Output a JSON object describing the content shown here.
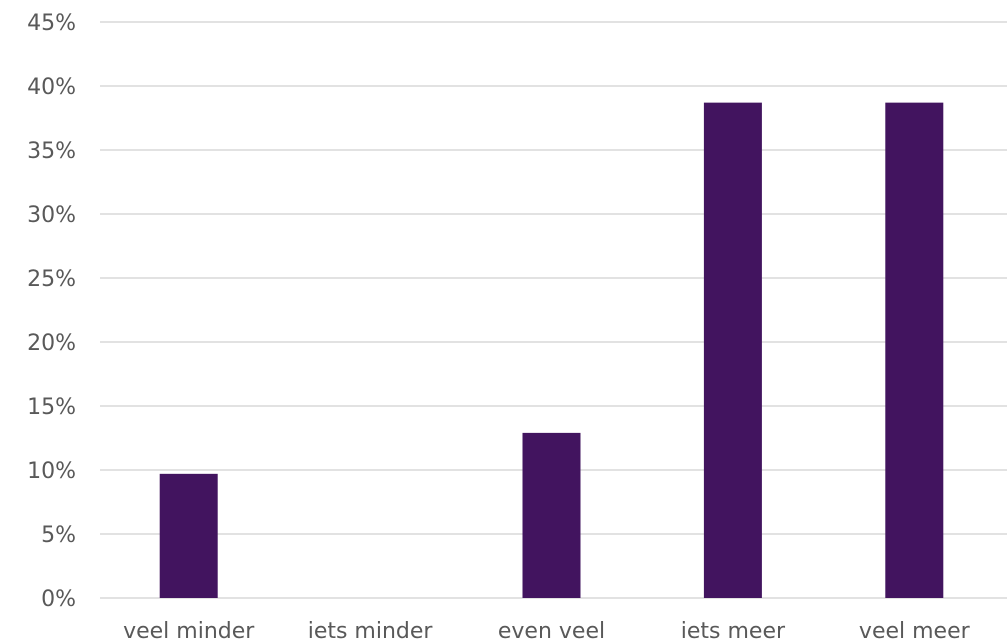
{
  "chart_data": {
    "type": "bar",
    "categories": [
      "veel minder",
      "iets minder",
      "even veel",
      "iets meer",
      "veel meer"
    ],
    "values": [
      9.7,
      0,
      12.9,
      38.7,
      38.7
    ],
    "ylim": [
      0,
      45
    ],
    "y_ticks": [
      "0%",
      "5%",
      "10%",
      "15%",
      "20%",
      "25%",
      "30%",
      "35%",
      "40%",
      "45%"
    ],
    "y_tick_values": [
      0,
      5,
      10,
      15,
      20,
      25,
      30,
      35,
      40,
      45
    ],
    "grid": true,
    "legend": "none",
    "bar_color": "#42145f",
    "grid_color": "#d9d9d9",
    "label_color": "#595959"
  }
}
